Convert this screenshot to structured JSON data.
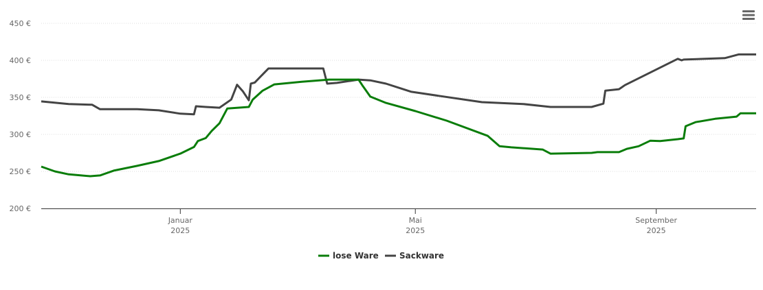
{
  "chart_data": {
    "type": "line",
    "title": "",
    "xlabel": "",
    "ylabel": "",
    "x_unit": "days since 2025-01-01",
    "xlim": [
      -71,
      294
    ],
    "ylim": [
      200,
      450
    ],
    "y_ticks": [
      200,
      250,
      300,
      350,
      400,
      450
    ],
    "y_tick_labels": [
      "200 €",
      "250 €",
      "300 €",
      "350 €",
      "400 €",
      "450 €"
    ],
    "x_ticks": [
      {
        "value": 0,
        "month": "Januar",
        "year": "2025"
      },
      {
        "value": 120,
        "month": "Mai",
        "year": "2025"
      },
      {
        "value": 243,
        "month": "September",
        "year": "2025"
      }
    ],
    "grid": "horizontal dotted",
    "legend_position": "bottom-center",
    "series": [
      {
        "name": "lose Ware",
        "color": "#0a7d0a",
        "points": [
          [
            -71,
            256.5
          ],
          [
            -64,
            250
          ],
          [
            -57,
            246
          ],
          [
            -46,
            243.5
          ],
          [
            -41,
            244.5
          ],
          [
            -34,
            251
          ],
          [
            -22,
            257.5
          ],
          [
            -11,
            264
          ],
          [
            0,
            274
          ],
          [
            7,
            283
          ],
          [
            9,
            291
          ],
          [
            13,
            295
          ],
          [
            16,
            304.5
          ],
          [
            20,
            315
          ],
          [
            24,
            335
          ],
          [
            35,
            337
          ],
          [
            37,
            347
          ],
          [
            42,
            359
          ],
          [
            48,
            367.5
          ],
          [
            62,
            371
          ],
          [
            76,
            374
          ],
          [
            91,
            374
          ],
          [
            93,
            366
          ],
          [
            97,
            351
          ],
          [
            105,
            342.5
          ],
          [
            120,
            331.5
          ],
          [
            136,
            318.5
          ],
          [
            157,
            298
          ],
          [
            163,
            284
          ],
          [
            169,
            282.5
          ],
          [
            185,
            279.5
          ],
          [
            189,
            274
          ],
          [
            210,
            275
          ],
          [
            213,
            276
          ],
          [
            224,
            276
          ],
          [
            228,
            280.5
          ],
          [
            234,
            284
          ],
          [
            240,
            291.5
          ],
          [
            245,
            291
          ],
          [
            254,
            293.5
          ],
          [
            257,
            294.5
          ],
          [
            258,
            311
          ],
          [
            263,
            316.5
          ],
          [
            273,
            321
          ],
          [
            284,
            324
          ],
          [
            286,
            328.5
          ],
          [
            294,
            328.5
          ]
        ]
      },
      {
        "name": "Sackware",
        "color": "#444444",
        "points": [
          [
            -71,
            344.5
          ],
          [
            -57,
            341
          ],
          [
            -45,
            340
          ],
          [
            -41,
            334
          ],
          [
            -22,
            334
          ],
          [
            -11,
            332.5
          ],
          [
            0,
            328
          ],
          [
            7,
            327
          ],
          [
            8,
            338
          ],
          [
            13,
            337
          ],
          [
            20,
            336
          ],
          [
            26,
            347
          ],
          [
            29,
            367
          ],
          [
            32,
            358
          ],
          [
            35,
            346
          ],
          [
            36,
            368.5
          ],
          [
            38,
            370
          ],
          [
            45,
            389
          ],
          [
            73,
            389
          ],
          [
            75,
            368.5
          ],
          [
            80,
            369.5
          ],
          [
            91,
            374
          ],
          [
            97,
            373
          ],
          [
            105,
            368.5
          ],
          [
            118,
            357.5
          ],
          [
            132,
            352
          ],
          [
            154,
            343.5
          ],
          [
            175,
            341
          ],
          [
            189,
            337
          ],
          [
            210,
            337
          ],
          [
            216,
            341.5
          ],
          [
            217,
            359
          ],
          [
            224,
            361
          ],
          [
            227,
            366.5
          ],
          [
            254,
            402
          ],
          [
            256,
            400
          ],
          [
            257,
            401
          ],
          [
            278,
            403
          ],
          [
            285,
            408
          ],
          [
            294,
            408
          ]
        ]
      }
    ]
  }
}
